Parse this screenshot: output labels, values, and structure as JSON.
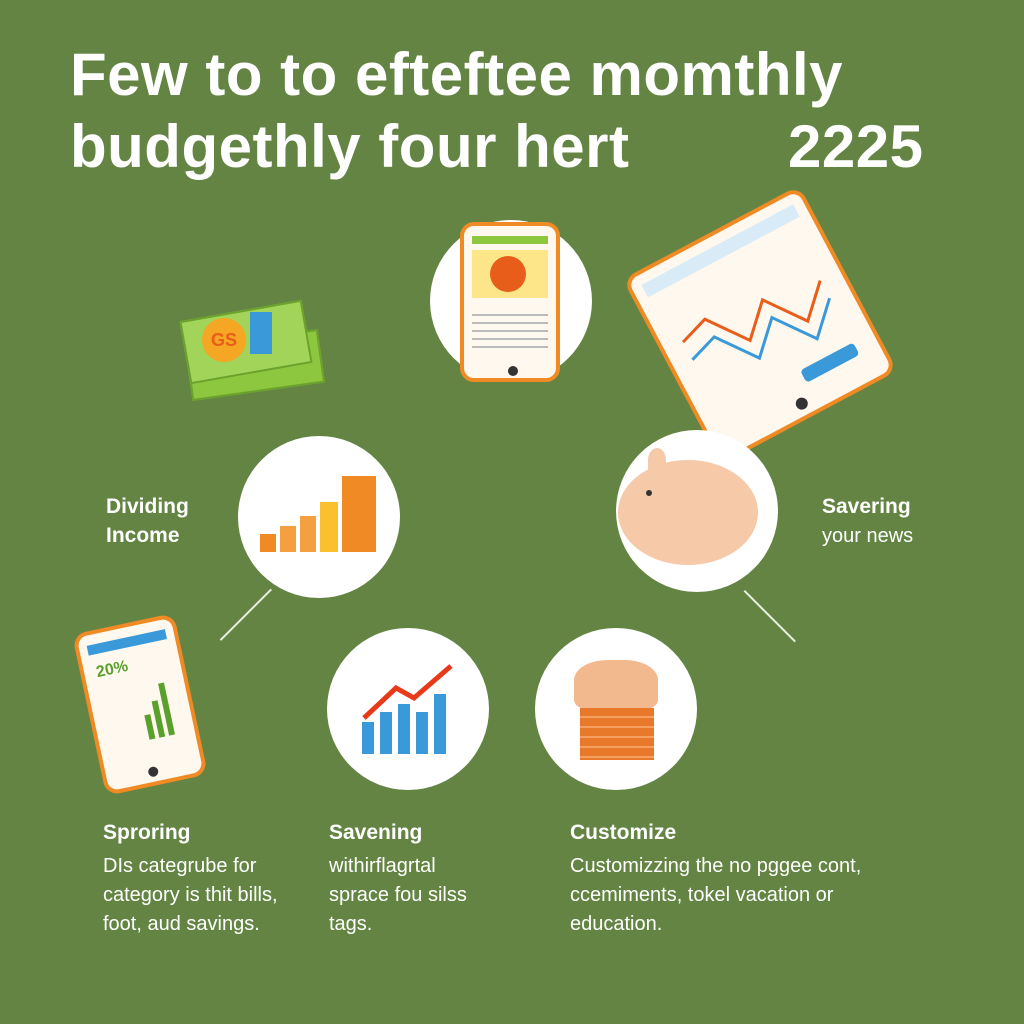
{
  "title": {
    "line1": "Few to to efteftee momthly",
    "line2": "budgethly four hert",
    "year": "2225"
  },
  "side_labels": {
    "left": {
      "title": "Dividing",
      "subtitle": "Income"
    },
    "right": {
      "title": "Savering",
      "subtitle": "your news"
    }
  },
  "small_phone": {
    "percent": "20%"
  },
  "columns": [
    {
      "heading": "Sproring",
      "lines": [
        "DIs categrube for",
        "category is thit bills,",
        "foot, aud savings."
      ]
    },
    {
      "heading": "Savening",
      "lines": [
        "withirflagrtal",
        "sprace fou silss",
        "tags."
      ]
    },
    {
      "heading": "Customize",
      "lines": [
        "Customizzing the no pggee cont,",
        "ccemiments, tokel vacation or",
        "education."
      ]
    }
  ],
  "money_label": "GS",
  "colors": {
    "background": "#648443",
    "accent_orange": "#f08a24",
    "chart_blue": "#3a9ad9",
    "pig_pink": "#f6c9a8"
  }
}
